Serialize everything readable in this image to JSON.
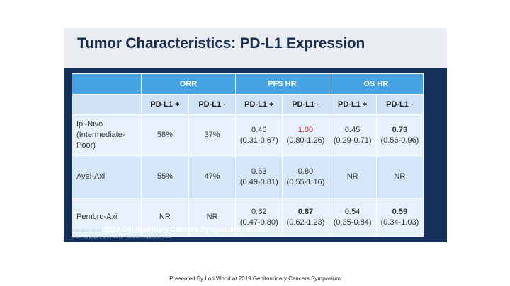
{
  "slide": {
    "title": "Tumor Characteristics: PD-L1 Expression",
    "footer": {
      "presented_at": "PRESENTED AT:",
      "symposium": "2019 Genitourinary Cancers Symposium",
      "separator": "|",
      "hashtag": "#GU19",
      "disclaimer": "Slides are property of the author. Permission required for reuse."
    }
  },
  "table": {
    "groups": [
      "ORR",
      "PFS HR",
      "OS HR"
    ],
    "subheaders": [
      "PD-L1 +",
      "PD-L1 -",
      "PD-L1 +",
      "PD-L1 -",
      "PD-L1 +",
      "PD-L1 -"
    ],
    "rows": [
      {
        "label_line1": "Ipi-Nivo",
        "label_line2": "(Intermediate-Poor)",
        "orr_pos": "58%",
        "orr_neg": "37%",
        "pfs_pos_val": "0.46",
        "pfs_pos_ci": "(0.31-0.67)",
        "pfs_neg_val": "1.00",
        "pfs_neg_ci": "(0.80-1.26)",
        "os_pos_val": "0.45",
        "os_pos_ci": "(0.29-0.71)",
        "os_neg_val": "0.73",
        "os_neg_ci": "(0.56-0.96)"
      },
      {
        "label": "Avel-Axi",
        "orr_pos": "55%",
        "orr_neg": "47%",
        "pfs_pos_val": "0.63",
        "pfs_pos_ci": "(0.49-0.81)",
        "pfs_neg_val": "0.80",
        "pfs_neg_ci": "(0.55-1.16)",
        "os_pos": "NR",
        "os_neg": "NR"
      },
      {
        "label": "Pembro-Axi",
        "orr_pos": "NR",
        "orr_neg": "NR",
        "pfs_pos_val": "0.62",
        "pfs_pos_ci": "(0.47-0.80)",
        "pfs_neg_val": "0.87",
        "pfs_neg_ci": "(0.62-1.23)",
        "os_pos_val": "0.54",
        "os_pos_ci": "(0.35-0.84)",
        "os_neg_val": "0.59",
        "os_neg_ci": "(0.34-1.03)"
      }
    ]
  },
  "caption": "Presented By Lori Wood at 2019 Genitourinary Cancers Symposium",
  "colors": {
    "slide_bg": "#14305a",
    "header_blue": "#47a4e4",
    "highlight_red": "#d0131a"
  }
}
